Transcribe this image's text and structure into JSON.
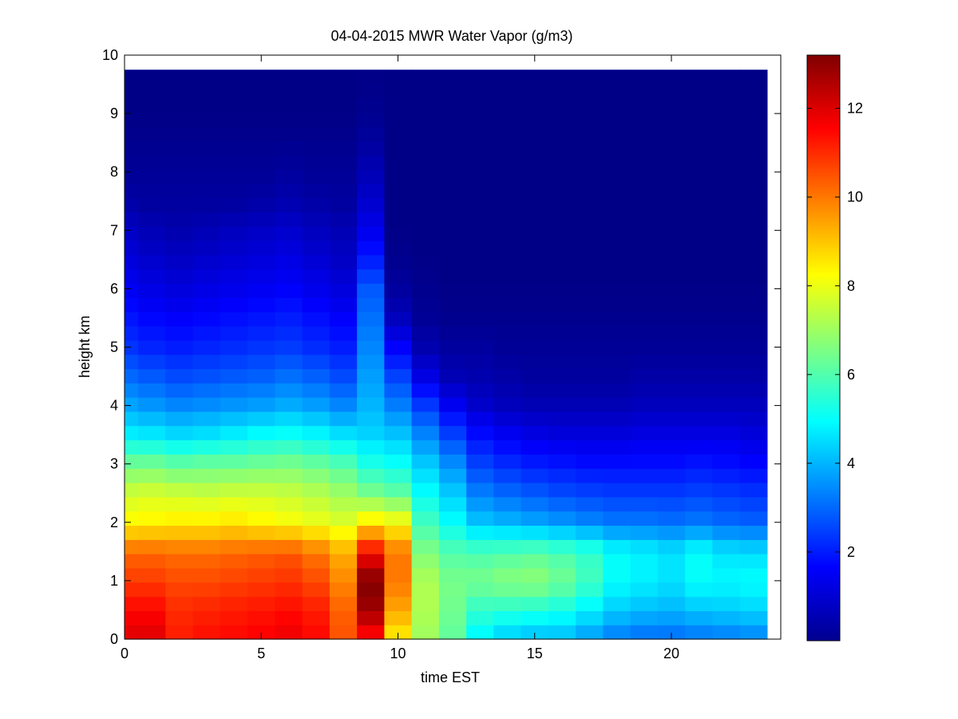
{
  "chart_data": {
    "type": "heatmap",
    "title": "04-04-2015 MWR Water Vapor (g/m3)",
    "xlabel": "time EST",
    "ylabel": "height km",
    "xlim": [
      0,
      24
    ],
    "ylim": [
      0,
      10
    ],
    "x_ticks": [
      0,
      5,
      10,
      15,
      20
    ],
    "y_ticks": [
      0,
      1,
      2,
      3,
      4,
      5,
      6,
      7,
      8,
      9,
      10
    ],
    "colorbar": {
      "colormap": "jet",
      "range": [
        0,
        13.2
      ],
      "ticks": [
        2,
        4,
        6,
        8,
        10,
        12
      ]
    },
    "time_columns": [
      0,
      1,
      2,
      3,
      4,
      5,
      6,
      7,
      8,
      9,
      10,
      11,
      12,
      13,
      14,
      15,
      16,
      17,
      18,
      19,
      20,
      21,
      22,
      23
    ],
    "data_extent": {
      "x_min": 0,
      "x_max": 23.5,
      "y_min": 0,
      "y_max": 9.75
    },
    "profile_heights_km": [
      0.0,
      0.5,
      1.0,
      1.5,
      2.0,
      2.5,
      3.0,
      3.5,
      4.0,
      4.5,
      5.0,
      5.5,
      6.0,
      6.5,
      7.0,
      7.5,
      8.0,
      8.5,
      9.0,
      9.75
    ],
    "profiles": [
      [
        12.0,
        11.5,
        10.8,
        10.2,
        8.3,
        7.6,
        6.4,
        4.8,
        3.8,
        3.0,
        2.3,
        1.9,
        1.5,
        1.2,
        0.9,
        0.5,
        0.3,
        0.2,
        0.1,
        0.1
      ],
      [
        12.0,
        11.5,
        10.8,
        10.2,
        8.4,
        7.7,
        6.4,
        4.7,
        3.6,
        2.8,
        2.1,
        1.7,
        1.3,
        1.0,
        0.7,
        0.4,
        0.3,
        0.2,
        0.1,
        0.1
      ],
      [
        11.2,
        11.0,
        10.6,
        10.1,
        8.5,
        7.6,
        6.2,
        4.5,
        3.4,
        2.6,
        2.0,
        1.6,
        1.2,
        0.9,
        0.6,
        0.4,
        0.3,
        0.2,
        0.1,
        0.1
      ],
      [
        11.4,
        11.1,
        10.6,
        10.1,
        8.5,
        7.5,
        6.3,
        4.6,
        3.5,
        2.7,
        2.1,
        1.7,
        1.3,
        1.0,
        0.7,
        0.4,
        0.3,
        0.2,
        0.1,
        0.1
      ],
      [
        11.5,
        11.2,
        10.7,
        10.2,
        8.6,
        7.6,
        6.3,
        4.8,
        3.6,
        2.8,
        2.2,
        1.8,
        1.4,
        1.1,
        0.8,
        0.4,
        0.3,
        0.2,
        0.1,
        0.1
      ],
      [
        11.6,
        11.3,
        10.8,
        10.3,
        8.4,
        7.6,
        6.4,
        5.0,
        3.7,
        2.9,
        2.3,
        1.9,
        1.5,
        1.2,
        0.9,
        0.5,
        0.3,
        0.2,
        0.1,
        0.1
      ],
      [
        11.8,
        11.4,
        10.9,
        10.4,
        8.2,
        7.5,
        6.5,
        5.1,
        3.9,
        3.1,
        2.4,
        2.0,
        1.6,
        1.3,
        1.0,
        0.6,
        0.4,
        0.2,
        0.1,
        0.1
      ],
      [
        11.5,
        11.2,
        10.6,
        10.0,
        8.0,
        7.3,
        6.3,
        4.9,
        3.7,
        2.9,
        2.2,
        1.8,
        1.4,
        1.1,
        0.8,
        0.5,
        0.3,
        0.2,
        0.1,
        0.1
      ],
      [
        10.5,
        10.3,
        9.8,
        9.3,
        7.8,
        7.0,
        6.0,
        4.6,
        3.4,
        2.6,
        2.0,
        1.6,
        1.2,
        0.9,
        0.7,
        0.4,
        0.3,
        0.2,
        0.1,
        0.1
      ],
      [
        11.3,
        12.8,
        13.2,
        11.5,
        8.5,
        6.5,
        5.3,
        4.4,
        4.0,
        3.7,
        3.4,
        3.1,
        2.8,
        2.0,
        1.4,
        1.0,
        0.7,
        0.4,
        0.2,
        0.1
      ],
      [
        8.4,
        9.4,
        10.0,
        10.0,
        8.2,
        6.2,
        5.1,
        4.2,
        3.3,
        2.5,
        1.6,
        0.8,
        0.4,
        0.2,
        0.1,
        0.1,
        0.1,
        0.1,
        0.1,
        0.1
      ],
      [
        7.0,
        7.2,
        7.2,
        6.6,
        5.8,
        5.0,
        4.3,
        3.4,
        2.4,
        1.3,
        0.6,
        0.3,
        0.2,
        0.1,
        0.1,
        0.1,
        0.1,
        0.1,
        0.1,
        0.1
      ],
      [
        6.2,
        6.4,
        6.5,
        6.0,
        5.0,
        4.3,
        3.5,
        2.5,
        1.5,
        0.7,
        0.4,
        0.2,
        0.1,
        0.1,
        0.1,
        0.1,
        0.1,
        0.1,
        0.1,
        0.1
      ],
      [
        4.8,
        5.6,
        6.5,
        5.9,
        4.2,
        3.3,
        2.5,
        1.8,
        1.0,
        0.6,
        0.4,
        0.2,
        0.1,
        0.1,
        0.1,
        0.1,
        0.1,
        0.1,
        0.1,
        0.1
      ],
      [
        4.2,
        5.5,
        6.7,
        6.0,
        4.0,
        3.0,
        2.2,
        1.5,
        0.8,
        0.5,
        0.3,
        0.2,
        0.1,
        0.1,
        0.1,
        0.1,
        0.1,
        0.1,
        0.1,
        0.1
      ],
      [
        4.0,
        5.4,
        6.8,
        6.1,
        3.8,
        2.8,
        2.0,
        1.3,
        0.7,
        0.4,
        0.3,
        0.2,
        0.1,
        0.1,
        0.1,
        0.1,
        0.1,
        0.1,
        0.1,
        0.1
      ],
      [
        4.0,
        5.2,
        6.4,
        5.9,
        3.6,
        2.6,
        1.9,
        1.2,
        0.7,
        0.4,
        0.3,
        0.2,
        0.1,
        0.1,
        0.1,
        0.1,
        0.1,
        0.1,
        0.1,
        0.1
      ],
      [
        3.6,
        4.8,
        5.8,
        5.6,
        3.4,
        2.5,
        1.8,
        1.2,
        0.7,
        0.4,
        0.3,
        0.2,
        0.1,
        0.1,
        0.1,
        0.1,
        0.1,
        0.1,
        0.1,
        0.1
      ],
      [
        3.2,
        4.3,
        5.0,
        5.0,
        3.2,
        2.4,
        1.8,
        1.2,
        0.7,
        0.4,
        0.3,
        0.2,
        0.1,
        0.1,
        0.1,
        0.1,
        0.1,
        0.1,
        0.1,
        0.1
      ],
      [
        3.0,
        4.1,
        4.8,
        4.8,
        3.2,
        2.4,
        1.8,
        1.3,
        0.8,
        0.5,
        0.3,
        0.2,
        0.1,
        0.1,
        0.1,
        0.1,
        0.1,
        0.1,
        0.1,
        0.1
      ],
      [
        3.0,
        4.0,
        4.6,
        4.6,
        3.1,
        2.4,
        1.8,
        1.3,
        0.8,
        0.5,
        0.3,
        0.2,
        0.1,
        0.1,
        0.1,
        0.1,
        0.1,
        0.1,
        0.1,
        0.1
      ],
      [
        3.1,
        4.2,
        5.0,
        5.0,
        3.2,
        2.5,
        1.9,
        1.3,
        0.8,
        0.5,
        0.3,
        0.2,
        0.1,
        0.1,
        0.1,
        0.1,
        0.1,
        0.1,
        0.1,
        0.1
      ],
      [
        3.2,
        4.3,
        4.9,
        4.6,
        3.0,
        2.4,
        1.8,
        1.3,
        0.8,
        0.5,
        0.3,
        0.2,
        0.1,
        0.1,
        0.1,
        0.1,
        0.1,
        0.1,
        0.1,
        0.1
      ],
      [
        3.3,
        4.4,
        5.0,
        4.5,
        2.9,
        2.3,
        1.7,
        1.2,
        0.8,
        0.5,
        0.3,
        0.2,
        0.1,
        0.1,
        0.1,
        0.1,
        0.1,
        0.1,
        0.1,
        0.1
      ]
    ]
  }
}
